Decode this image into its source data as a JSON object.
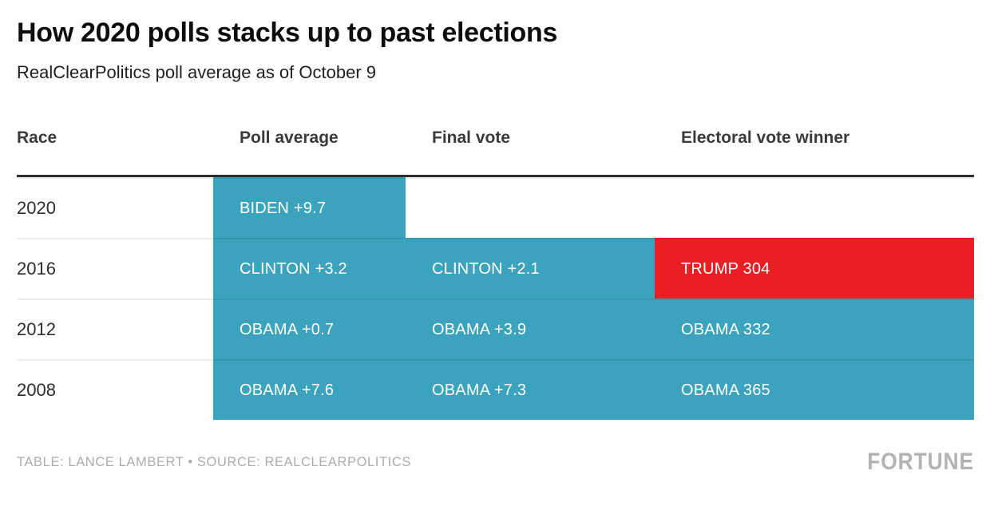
{
  "title": "How 2020 polls stacks up to past elections",
  "subtitle": "RealClearPolitics poll average as of October 9",
  "colors": {
    "teal": "#3BA3BD",
    "red": "#EC1E25",
    "header_rule": "#2E2E2E",
    "footer_text": "#ACACAC"
  },
  "table": {
    "columns": [
      "Race",
      "Poll average",
      "Final vote",
      "Electoral vote winner"
    ],
    "rows": [
      {
        "race": "2020",
        "cells": [
          {
            "text": "BIDEN +9.7",
            "color": "teal"
          },
          {
            "text": "",
            "color": "none"
          },
          {
            "text": "",
            "color": "none"
          }
        ]
      },
      {
        "race": "2016",
        "cells": [
          {
            "text": "CLINTON +3.2",
            "color": "teal"
          },
          {
            "text": "CLINTON +2.1",
            "color": "teal"
          },
          {
            "text": "TRUMP 304",
            "color": "red"
          }
        ]
      },
      {
        "race": "2012",
        "cells": [
          {
            "text": "OBAMA +0.7",
            "color": "teal"
          },
          {
            "text": "OBAMA +3.9",
            "color": "teal"
          },
          {
            "text": "OBAMA 332",
            "color": "teal"
          }
        ]
      },
      {
        "race": "2008",
        "cells": [
          {
            "text": "OBAMA +7.6",
            "color": "teal"
          },
          {
            "text": "OBAMA +7.3",
            "color": "teal"
          },
          {
            "text": "OBAMA 365",
            "color": "teal"
          }
        ]
      }
    ]
  },
  "footer": {
    "credit": "TABLE: LANCE LAMBERT • SOURCE: REALCLEARPOLITICS",
    "brand": "FORTUNE"
  },
  "chart_data": {
    "type": "table",
    "title": "How 2020 polls stacks up to past elections",
    "subtitle": "RealClearPolitics poll average as of October 9",
    "columns": [
      "Race",
      "Poll average",
      "Final vote",
      "Electoral vote winner"
    ],
    "rows": [
      [
        "2020",
        "BIDEN +9.7",
        "",
        ""
      ],
      [
        "2016",
        "CLINTON +3.2",
        "CLINTON +2.1",
        "TRUMP 304"
      ],
      [
        "2012",
        "OBAMA +0.7",
        "OBAMA +3.9",
        "OBAMA 332"
      ],
      [
        "2008",
        "OBAMA +7.6",
        "OBAMA +7.3",
        "OBAMA 365"
      ]
    ],
    "cell_colors": [
      [
        "white",
        "teal",
        "white",
        "white"
      ],
      [
        "white",
        "teal",
        "teal",
        "red"
      ],
      [
        "white",
        "teal",
        "teal",
        "teal"
      ],
      [
        "white",
        "teal",
        "teal",
        "teal"
      ]
    ],
    "legend_position": "none",
    "grid": false,
    "source": "TABLE: LANCE LAMBERT • SOURCE: REALCLEARPOLITICS",
    "brand": "FORTUNE"
  }
}
